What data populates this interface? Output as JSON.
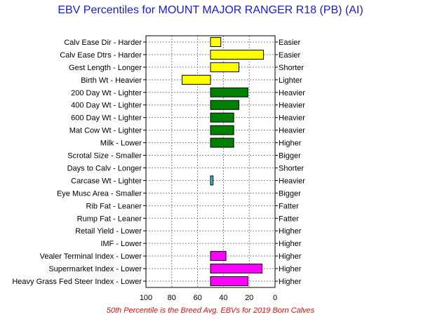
{
  "chart_data": {
    "type": "bar",
    "title": "EBV Percentiles for MOUNT MAJOR RANGER R18 (PB) (AI)",
    "footnote": "50th Percentile is the Breed Avg. EBVs for 2019 Born Calves",
    "xlim": [
      100,
      0
    ],
    "x_ticks": [
      "100",
      "80",
      "60",
      "40",
      "20",
      "0"
    ],
    "baseline": 50,
    "grid": true,
    "colors": {
      "calving": "#ffff00",
      "growth": "#008000",
      "carcase": "#40c0c0",
      "index": "#ff00ff"
    },
    "rows": [
      {
        "left": "Calv Ease Dir - Harder",
        "right": "Easier",
        "value": 42,
        "group": "calving"
      },
      {
        "left": "Calv Ease Dtrs - Harder",
        "right": "Easier",
        "value": 9,
        "group": "calving"
      },
      {
        "left": "Gest Length - Longer",
        "right": "Shorter",
        "value": 28,
        "group": "calving"
      },
      {
        "left": "Birth Wt - Heavier",
        "right": "Lighter",
        "value": 72,
        "group": "calving"
      },
      {
        "left": "200 Day Wt - Lighter",
        "right": "Heavier",
        "value": 21,
        "group": "growth"
      },
      {
        "left": "400 Day Wt - Lighter",
        "right": "Heavier",
        "value": 28,
        "group": "growth"
      },
      {
        "left": "600 Day Wt - Lighter",
        "right": "Heavier",
        "value": 32,
        "group": "growth"
      },
      {
        "left": "Mat Cow Wt - Lighter",
        "right": "Heavier",
        "value": 32,
        "group": "growth"
      },
      {
        "left": "Milk - Lower",
        "right": "Higher",
        "value": 32,
        "group": "growth"
      },
      {
        "left": "Scrotal Size - Smaller",
        "right": "Bigger",
        "value": null,
        "group": "carcase"
      },
      {
        "left": "Days to Calv - Longer",
        "right": "Shorter",
        "value": null,
        "group": "carcase"
      },
      {
        "left": "Carcase Wt - Lighter",
        "right": "Heavier",
        "value": 48,
        "group": "carcase"
      },
      {
        "left": "Eye Musc Area - Smaller",
        "right": "Bigger",
        "value": null,
        "group": "carcase"
      },
      {
        "left": "Rib Fat - Leaner",
        "right": "Fatter",
        "value": null,
        "group": "carcase"
      },
      {
        "left": "Rump Fat - Leaner",
        "right": "Fatter",
        "value": null,
        "group": "carcase"
      },
      {
        "left": "Retail Yield - Lower",
        "right": "Higher",
        "value": null,
        "group": "carcase"
      },
      {
        "left": "IMF - Lower",
        "right": "Higher",
        "value": null,
        "group": "carcase"
      },
      {
        "left": "Vealer Terminal Index - Lower",
        "right": "Higher",
        "value": 38,
        "group": "index"
      },
      {
        "left": "Supermarket Index - Lower",
        "right": "Higher",
        "value": 10,
        "group": "index"
      },
      {
        "left": "Heavy Grass Fed Steer Index - Lower",
        "right": "Higher",
        "value": 21,
        "group": "index"
      }
    ]
  }
}
